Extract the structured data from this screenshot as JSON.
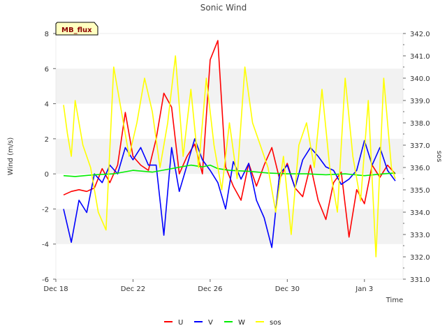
{
  "chart_data": {
    "type": "line",
    "title": "Sonic Wind",
    "badge": "MB_flux",
    "xlabel": "Time",
    "ylabel_left": "Wind (m/s)",
    "ylabel_right": "sos",
    "x_start": "Dec 18",
    "x_end": "Jan 5",
    "x_ticks": [
      "Dec 18",
      "Dec 22",
      "Dec 26",
      "Dec 30",
      "Jan 3"
    ],
    "ylim_left": [
      -6,
      8
    ],
    "y_ticks_left": [
      "-6",
      "-4",
      "-2",
      "0",
      "2",
      "4",
      "6",
      "8"
    ],
    "ylim_right": [
      331,
      342
    ],
    "y_ticks_right": [
      "331.0",
      "332.0",
      "333.0",
      "334.0",
      "335.0",
      "336.0",
      "337.0",
      "338.0",
      "339.0",
      "340.0",
      "341.0",
      "342.0"
    ],
    "grid": "horizontal bands",
    "legend_position": "bottom",
    "series": [
      {
        "name": "U",
        "color": "#ff0000",
        "axis": "left",
        "x": [
          0.4,
          0.8,
          1.2,
          1.6,
          2.0,
          2.4,
          2.8,
          3.2,
          3.6,
          4.0,
          4.4,
          4.8,
          5.2,
          5.6,
          6.0,
          6.4,
          6.8,
          7.2,
          7.6,
          8.0,
          8.4,
          8.8,
          9.2,
          9.6,
          10.0,
          10.4,
          10.8,
          11.2,
          11.6,
          12.0,
          12.4,
          12.8,
          13.2,
          13.6,
          14.0,
          14.4,
          14.8,
          15.2,
          15.6,
          16.0,
          16.4,
          16.8,
          17.2,
          17.6
        ],
        "values": [
          -1.2,
          -1.0,
          -0.9,
          -1.0,
          -0.8,
          0.3,
          -0.5,
          0.5,
          3.5,
          1.0,
          0.5,
          0.2,
          2.0,
          4.6,
          3.8,
          0.0,
          1.0,
          1.7,
          0.0,
          6.5,
          7.6,
          0.4,
          -0.7,
          -1.5,
          0.6,
          -0.7,
          0.5,
          1.5,
          -0.3,
          0.6,
          -0.8,
          -1.3,
          0.5,
          -1.5,
          -2.6,
          -0.5,
          0.1,
          -3.6,
          -0.9,
          -1.7,
          0.5,
          -0.2,
          0.5,
          0.0
        ]
      },
      {
        "name": "V",
        "color": "#0000ff",
        "axis": "left",
        "x": [
          0.4,
          0.8,
          1.2,
          1.6,
          2.0,
          2.4,
          2.8,
          3.2,
          3.6,
          4.0,
          4.4,
          4.8,
          5.2,
          5.6,
          6.0,
          6.4,
          6.8,
          7.2,
          7.6,
          8.0,
          8.4,
          8.8,
          9.2,
          9.6,
          10.0,
          10.4,
          10.8,
          11.2,
          11.6,
          12.0,
          12.4,
          12.8,
          13.2,
          13.6,
          14.0,
          14.4,
          14.8,
          15.2,
          15.6,
          16.0,
          16.4,
          16.8,
          17.2,
          17.6
        ],
        "values": [
          -2.0,
          -3.9,
          -1.5,
          -2.2,
          0.0,
          -0.5,
          0.5,
          0.0,
          1.5,
          0.8,
          1.5,
          0.5,
          0.5,
          -3.5,
          1.5,
          -1.0,
          0.5,
          2.0,
          0.8,
          0.2,
          -0.5,
          -2.0,
          0.7,
          -0.3,
          0.6,
          -1.5,
          -2.5,
          -4.2,
          0.0,
          0.5,
          -0.8,
          0.8,
          1.5,
          1.0,
          0.4,
          0.2,
          -0.6,
          -0.3,
          0.2,
          1.9,
          0.5,
          1.5,
          0.2,
          -0.4
        ]
      },
      {
        "name": "W",
        "color": "#00ee00",
        "axis": "left",
        "x": [
          0.4,
          1.0,
          2.0,
          3.0,
          4.0,
          5.0,
          6.0,
          7.0,
          7.6,
          8.0,
          8.4,
          9.0,
          10.0,
          11.0,
          12.0,
          13.0,
          14.0,
          15.0,
          16.0,
          17.0,
          17.6
        ],
        "values": [
          -0.1,
          -0.15,
          -0.05,
          0.0,
          0.2,
          0.1,
          0.3,
          0.5,
          0.4,
          0.5,
          0.3,
          0.2,
          0.15,
          0.05,
          0.0,
          0.0,
          -0.05,
          0.0,
          -0.1,
          0.0,
          0.05
        ]
      },
      {
        "name": "sos",
        "color": "#ffff00",
        "axis": "right",
        "x": [
          0.4,
          0.6,
          0.8,
          1.0,
          1.4,
          1.8,
          2.2,
          2.6,
          3.0,
          3.4,
          3.8,
          4.2,
          4.6,
          5.0,
          5.4,
          5.8,
          6.2,
          6.6,
          7.0,
          7.4,
          7.8,
          8.2,
          8.6,
          9.0,
          9.4,
          9.8,
          10.2,
          10.6,
          11.0,
          11.4,
          11.8,
          12.2,
          12.6,
          13.0,
          13.4,
          13.8,
          14.2,
          14.6,
          15.0,
          15.4,
          15.8,
          16.2,
          16.6,
          17.0,
          17.4,
          17.6
        ],
        "values": [
          338.8,
          337.5,
          336.5,
          339.0,
          337.0,
          336.0,
          334.0,
          333.2,
          340.5,
          338.5,
          336.5,
          338.0,
          340.0,
          338.5,
          336.0,
          338.0,
          341.0,
          336.5,
          339.5,
          336.0,
          340.0,
          337.0,
          335.0,
          338.0,
          335.5,
          340.5,
          338.0,
          337.0,
          336.0,
          334.0,
          336.5,
          333.0,
          337.0,
          338.0,
          336.0,
          339.5,
          336.0,
          334.0,
          340.0,
          336.5,
          334.5,
          339.0,
          332.0,
          340.0,
          336.0,
          335.5
        ]
      }
    ]
  }
}
